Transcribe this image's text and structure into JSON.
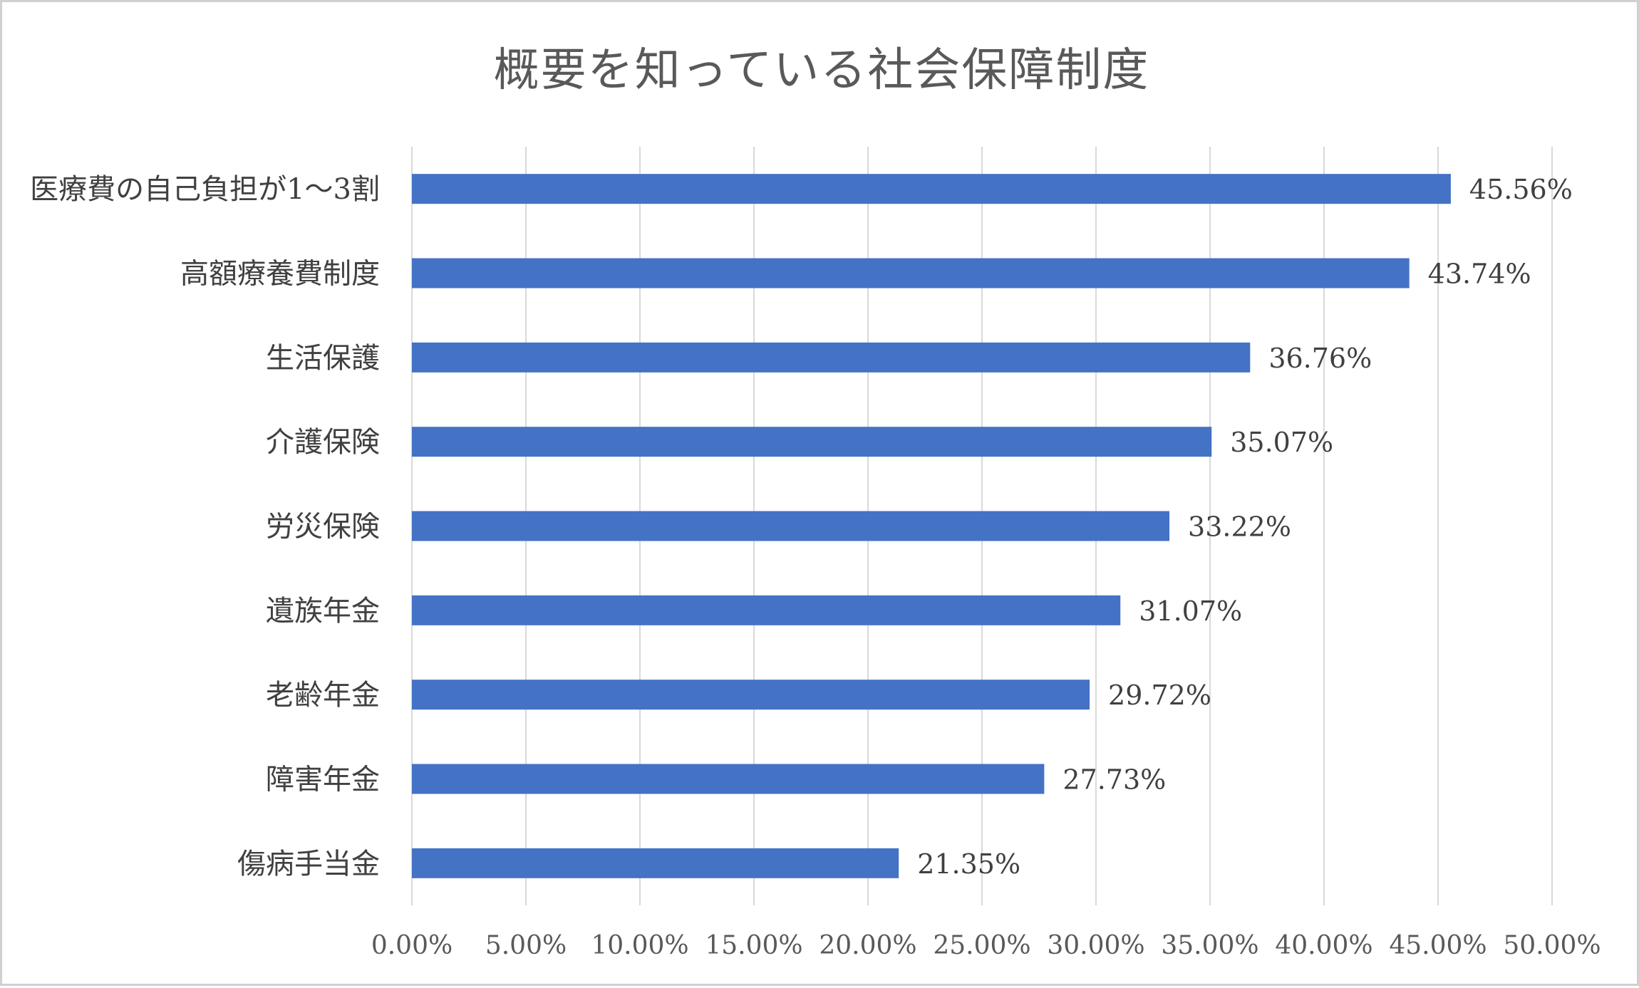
{
  "chart_data": {
    "type": "bar",
    "orientation": "horizontal",
    "title": "概要を知っている社会保障制度",
    "categories": [
      "医療費の自己負担が1～3割",
      "高額療養費制度",
      "生活保護",
      "介護保険",
      "労災保険",
      "遺族年金",
      "老齢年金",
      "障害年金",
      "傷病手当金"
    ],
    "values": [
      45.56,
      43.74,
      36.76,
      35.07,
      33.22,
      31.07,
      29.72,
      27.73,
      21.35
    ],
    "data_labels": [
      "45.56%",
      "43.74%",
      "36.76%",
      "35.07%",
      "33.22%",
      "31.07%",
      "29.72%",
      "27.73%",
      "21.35%"
    ],
    "xlim": [
      0,
      50
    ],
    "xticks": [
      0,
      5,
      10,
      15,
      20,
      25,
      30,
      35,
      40,
      45,
      50
    ],
    "xtick_labels": [
      "0.00%",
      "5.00%",
      "10.00%",
      "15.00%",
      "20.00%",
      "25.00%",
      "30.00%",
      "35.00%",
      "40.00%",
      "45.00%",
      "50.00%"
    ],
    "xlabel": "",
    "ylabel": "",
    "grid": "vertical",
    "legend": "none",
    "bar_color": "#4472C4",
    "grid_color": "#D9D9D9"
  }
}
